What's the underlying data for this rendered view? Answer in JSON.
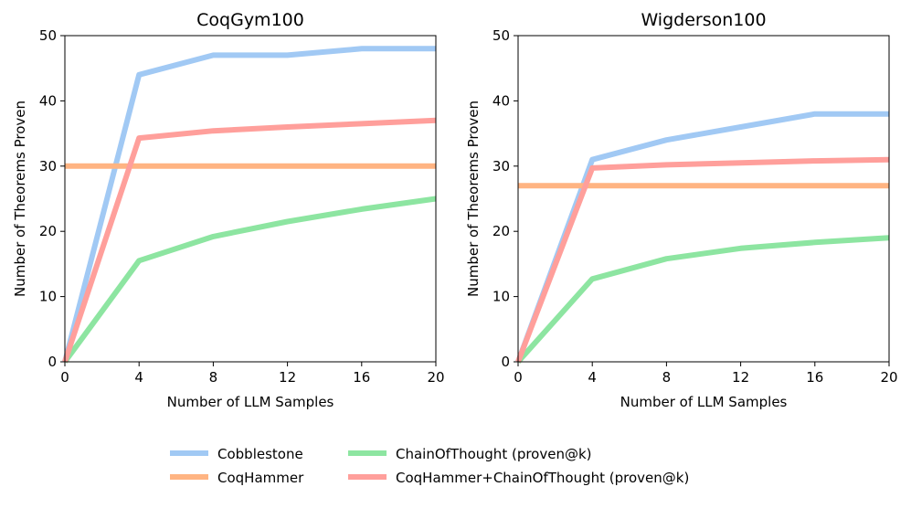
{
  "chart_data": [
    {
      "type": "line",
      "title": "CoqGym100",
      "xlabel": "Number of LLM Samples",
      "ylabel": "Number of Theorems Proven",
      "xlim": [
        0,
        20
      ],
      "ylim": [
        0,
        50
      ],
      "xticks": [
        0,
        4,
        8,
        12,
        16,
        20
      ],
      "yticks": [
        0,
        10,
        20,
        30,
        40,
        50
      ],
      "grid": false,
      "series": [
        {
          "name": "Cobblestone",
          "x": [
            0,
            4,
            8,
            12,
            16,
            20
          ],
          "values": [
            0,
            44,
            47,
            47,
            48,
            48
          ]
        },
        {
          "name": "CoqHammer",
          "x": [
            0,
            20
          ],
          "values": [
            30,
            30
          ]
        },
        {
          "name": "ChainOfThought (proven@k)",
          "x": [
            0,
            4,
            8,
            12,
            16,
            20
          ],
          "values": [
            0,
            15.5,
            19.2,
            21.5,
            23.4,
            25
          ]
        },
        {
          "name": "CoqHammer+ChainOfThought (proven@k)",
          "x": [
            0,
            4,
            8,
            12,
            16,
            20
          ],
          "values": [
            0,
            34.3,
            35.4,
            36,
            36.5,
            37
          ]
        }
      ]
    },
    {
      "type": "line",
      "title": "Wigderson100",
      "xlabel": "Number of LLM Samples",
      "ylabel": "Number of Theorems Proven",
      "xlim": [
        0,
        20
      ],
      "ylim": [
        0,
        50
      ],
      "xticks": [
        0,
        4,
        8,
        12,
        16,
        20
      ],
      "yticks": [
        0,
        10,
        20,
        30,
        40,
        50
      ],
      "grid": false,
      "series": [
        {
          "name": "Cobblestone",
          "x": [
            0,
            4,
            8,
            12,
            16,
            20
          ],
          "values": [
            0,
            31,
            34,
            36,
            38,
            38
          ]
        },
        {
          "name": "CoqHammer",
          "x": [
            0,
            20
          ],
          "values": [
            27,
            27
          ]
        },
        {
          "name": "ChainOfThought (proven@k)",
          "x": [
            0,
            4,
            8,
            12,
            16,
            20
          ],
          "values": [
            0,
            12.7,
            15.8,
            17.4,
            18.3,
            19
          ]
        },
        {
          "name": "CoqHammer+ChainOfThought (proven@k)",
          "x": [
            0,
            4,
            8,
            12,
            16,
            20
          ],
          "values": [
            0,
            29.7,
            30.2,
            30.5,
            30.8,
            31
          ]
        }
      ]
    }
  ],
  "colors": {
    "Cobblestone": "#a1c9f4",
    "CoqHammer": "#ffb482",
    "ChainOfThought (proven@k)": "#8de5a1",
    "CoqHammer+ChainOfThought (proven@k)": "#ff9f9b"
  },
  "legend": {
    "placement": "bottom-center",
    "entries": [
      "Cobblestone",
      "ChainOfThought (proven@k)",
      "CoqHammer",
      "CoqHammer+ChainOfThought (proven@k)"
    ]
  }
}
